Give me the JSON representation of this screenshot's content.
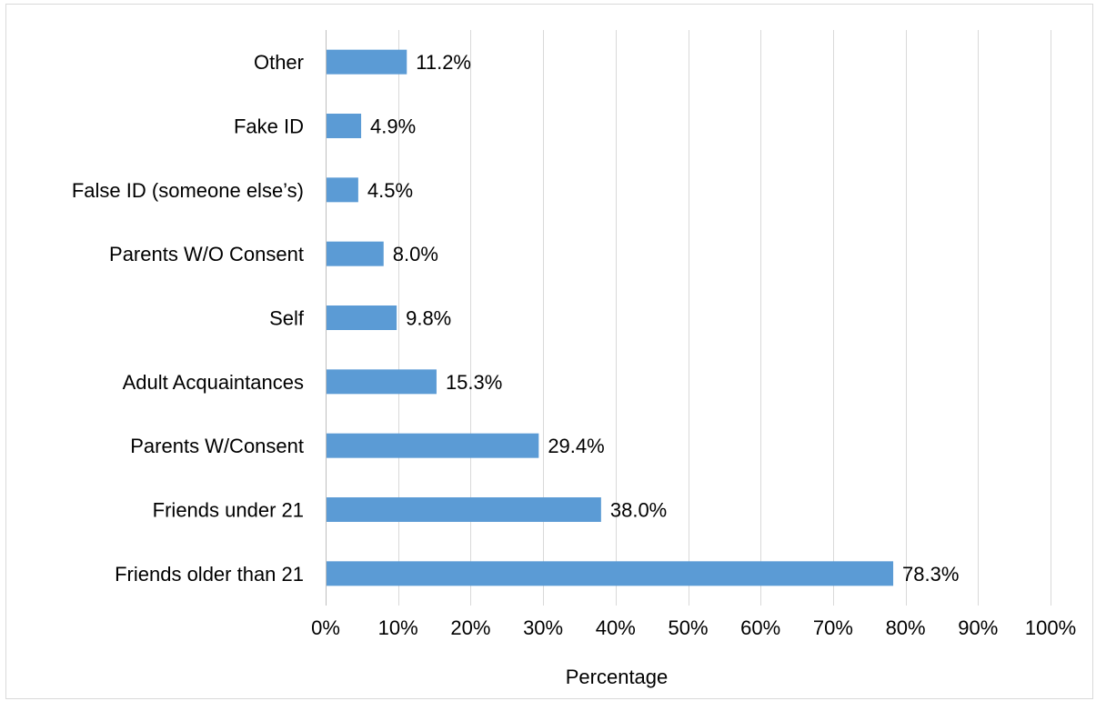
{
  "chart_data": {
    "type": "bar",
    "orientation": "horizontal",
    "categories": [
      "Other",
      "Fake ID",
      "False ID (someone else’s)",
      "Parents W/O Consent",
      "Self",
      "Adult Acquaintances",
      "Parents W/Consent",
      "Friends under 21",
      "Friends older than 21"
    ],
    "values": [
      11.2,
      4.9,
      4.5,
      8.0,
      9.8,
      15.3,
      29.4,
      38.0,
      78.3
    ],
    "data_labels": [
      "11.2%",
      "4.9%",
      "4.5%",
      "8.0%",
      "9.8%",
      "15.3%",
      "29.4%",
      "38.0%",
      "78.3%"
    ],
    "x_ticks": [
      "0%",
      "10%",
      "20%",
      "30%",
      "40%",
      "50%",
      "60%",
      "70%",
      "80%",
      "90%",
      "100%"
    ],
    "xlim": [
      0,
      100
    ],
    "xlabel": "Percentage",
    "ylabel": "",
    "title": "",
    "grid": "vertical",
    "legend": "none",
    "bar_color": "#5b9bd5"
  }
}
